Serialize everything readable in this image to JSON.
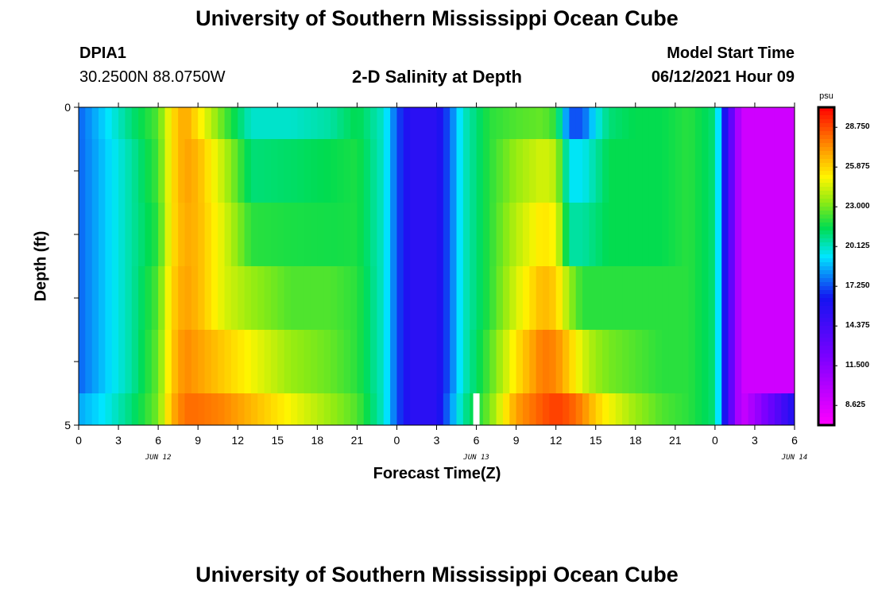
{
  "header": {
    "title": "University of Southern Mississippi Ocean Cube",
    "station": "DPIA1",
    "coords": "30.2500N  88.0750W",
    "subtitle": "2-D Salinity at Depth",
    "start_label": "Model Start Time",
    "start_value": "06/12/2021 Hour 09"
  },
  "footer": {
    "title": "University of Southern Mississippi Ocean Cube"
  },
  "chart_data": {
    "type": "heatmap",
    "title": "2-D Salinity at Depth",
    "xlabel": "Forecast Time(Z)",
    "ylabel": "Depth (ft)",
    "x_tick_labels": [
      "0",
      "3",
      "6",
      "9",
      "12",
      "15",
      "18",
      "21",
      "0",
      "3",
      "6",
      "9",
      "12",
      "15",
      "18",
      "21",
      "0",
      "3",
      "6"
    ],
    "date_labels": [
      {
        "label": "JUN 12",
        "at_hour": 6
      },
      {
        "label": "JUN 13",
        "at_hour": 30
      },
      {
        "label": "JUN 14",
        "at_hour": 54
      }
    ],
    "y_tick_labels": [
      "0",
      "5"
    ],
    "ylim": [
      0,
      5
    ],
    "xlim_hours": [
      0,
      54
    ],
    "colorbar": {
      "unit": "psu",
      "range": [
        7.2,
        30.2
      ],
      "labels": [
        "28.750",
        "25.875",
        "23.000",
        "20.125",
        "17.250",
        "14.375",
        "11.500",
        "8.625"
      ],
      "label_values": [
        28.75,
        25.875,
        23.0,
        20.125,
        17.25,
        14.375,
        11.5,
        8.625
      ]
    },
    "depth_layers_ft": [
      "0-0.5",
      "0.5-1.5",
      "1.5-2.5",
      "2.5-3.5",
      "3.5-4.5",
      "4.5-5"
    ],
    "keyframes_hours": [
      0,
      2,
      4,
      6,
      7,
      8,
      9,
      11,
      13,
      16,
      19,
      21,
      23,
      24,
      25,
      27,
      28,
      29,
      31,
      33,
      35,
      36,
      37,
      38,
      39,
      40,
      42,
      44,
      46,
      48,
      49,
      50,
      54
    ],
    "salinity_keyframes": [
      [
        17.5,
        19.2,
        21.0,
        22.5,
        25.5,
        27.0,
        25.5,
        22.5,
        20.0,
        20.0,
        20.5,
        21.5,
        20.0,
        17.3,
        15.5,
        15.5,
        17.5,
        20.0,
        22.0,
        22.5,
        22.8,
        22.0,
        17.3,
        17.3,
        19.5,
        21.0,
        21.5,
        21.5,
        22.0,
        21.0,
        14.5,
        9.0,
        9.0
      ],
      [
        17.5,
        19.0,
        20.5,
        22.3,
        25.5,
        27.0,
        26.5,
        24.0,
        21.0,
        21.2,
        21.5,
        21.8,
        20.0,
        17.3,
        15.5,
        15.5,
        17.5,
        20.0,
        22.0,
        23.5,
        24.5,
        24.0,
        19.5,
        19.5,
        20.5,
        21.5,
        21.5,
        21.5,
        22.0,
        21.0,
        14.5,
        9.0,
        9.0
      ],
      [
        17.5,
        19.0,
        20.5,
        22.0,
        25.5,
        26.8,
        26.5,
        24.5,
        22.0,
        21.8,
        21.7,
        21.8,
        20.0,
        17.3,
        15.5,
        15.5,
        17.5,
        20.0,
        22.0,
        24.0,
        25.5,
        25.0,
        20.5,
        20.5,
        21.0,
        21.5,
        21.5,
        21.5,
        22.0,
        21.0,
        14.5,
        9.0,
        9.0
      ],
      [
        17.5,
        19.0,
        20.5,
        22.5,
        25.8,
        27.0,
        26.5,
        24.5,
        23.5,
        22.5,
        22.5,
        22.0,
        20.0,
        17.3,
        15.5,
        15.5,
        17.5,
        20.0,
        22.0,
        24.5,
        26.5,
        26.0,
        23.5,
        22.0,
        22.0,
        22.0,
        22.0,
        22.0,
        22.0,
        21.0,
        14.5,
        9.0,
        9.0
      ],
      [
        17.5,
        19.0,
        20.5,
        22.8,
        26.0,
        27.5,
        27.0,
        26.0,
        25.0,
        23.5,
        22.8,
        22.0,
        20.0,
        17.3,
        15.5,
        15.5,
        17.5,
        20.0,
        22.5,
        25.5,
        27.8,
        27.5,
        26.0,
        24.5,
        23.5,
        23.0,
        22.5,
        22.0,
        22.0,
        21.0,
        14.5,
        9.0,
        9.0
      ],
      [
        18.5,
        19.5,
        21.0,
        23.0,
        26.5,
        28.0,
        28.0,
        27.5,
        26.5,
        25.0,
        23.5,
        22.5,
        20.0,
        17.3,
        15.5,
        15.5,
        18.0,
        20.5,
        23.0,
        27.0,
        28.5,
        29.0,
        28.5,
        27.5,
        26.0,
        25.0,
        23.5,
        22.5,
        22.0,
        21.0,
        14.5,
        9.0,
        16.0
      ]
    ],
    "missing_cell": {
      "hour": 30,
      "depth_layer": 5
    }
  }
}
